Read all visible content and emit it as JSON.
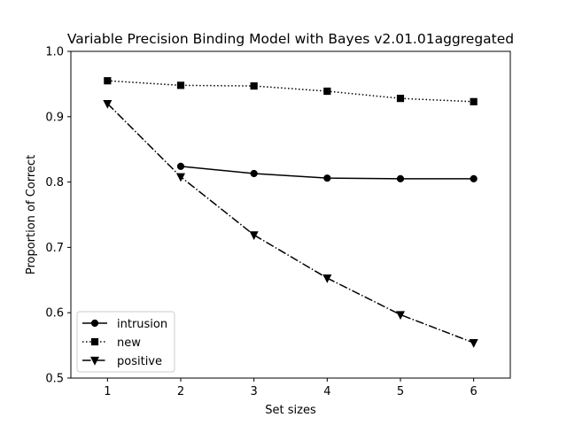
{
  "chart_data": {
    "type": "line",
    "title": "Variable Precision Binding Model with Bayes v2.01.01aggregated",
    "xlabel": "Set sizes",
    "ylabel": "Proportion of Correct",
    "xlim": [
      0.5,
      6.5
    ],
    "ylim": [
      0.5,
      1.0
    ],
    "xticks": [
      1,
      2,
      3,
      4,
      5,
      6
    ],
    "yticks": [
      0.5,
      0.6,
      0.7,
      0.8,
      0.9,
      1.0
    ],
    "ytick_labels": [
      "0.5",
      "0.6",
      "0.7",
      "0.8",
      "0.9",
      "1.0"
    ],
    "grid": false,
    "legend_position": "lower-left",
    "series": [
      {
        "name": "intrusion",
        "x": [
          2,
          3,
          4,
          5,
          6
        ],
        "values": [
          0.824,
          0.813,
          0.806,
          0.805,
          0.805
        ],
        "linestyle": "solid",
        "marker": "circle",
        "color": "#000000"
      },
      {
        "name": "new",
        "x": [
          1,
          2,
          3,
          4,
          5,
          6
        ],
        "values": [
          0.955,
          0.948,
          0.947,
          0.939,
          0.928,
          0.923
        ],
        "linestyle": "dotted",
        "marker": "square",
        "color": "#000000"
      },
      {
        "name": "positive",
        "x": [
          1,
          2,
          3,
          4,
          5,
          6
        ],
        "values": [
          0.92,
          0.808,
          0.719,
          0.653,
          0.597,
          0.554
        ],
        "linestyle": "dashdot",
        "marker": "triangle-down",
        "color": "#000000"
      }
    ]
  }
}
